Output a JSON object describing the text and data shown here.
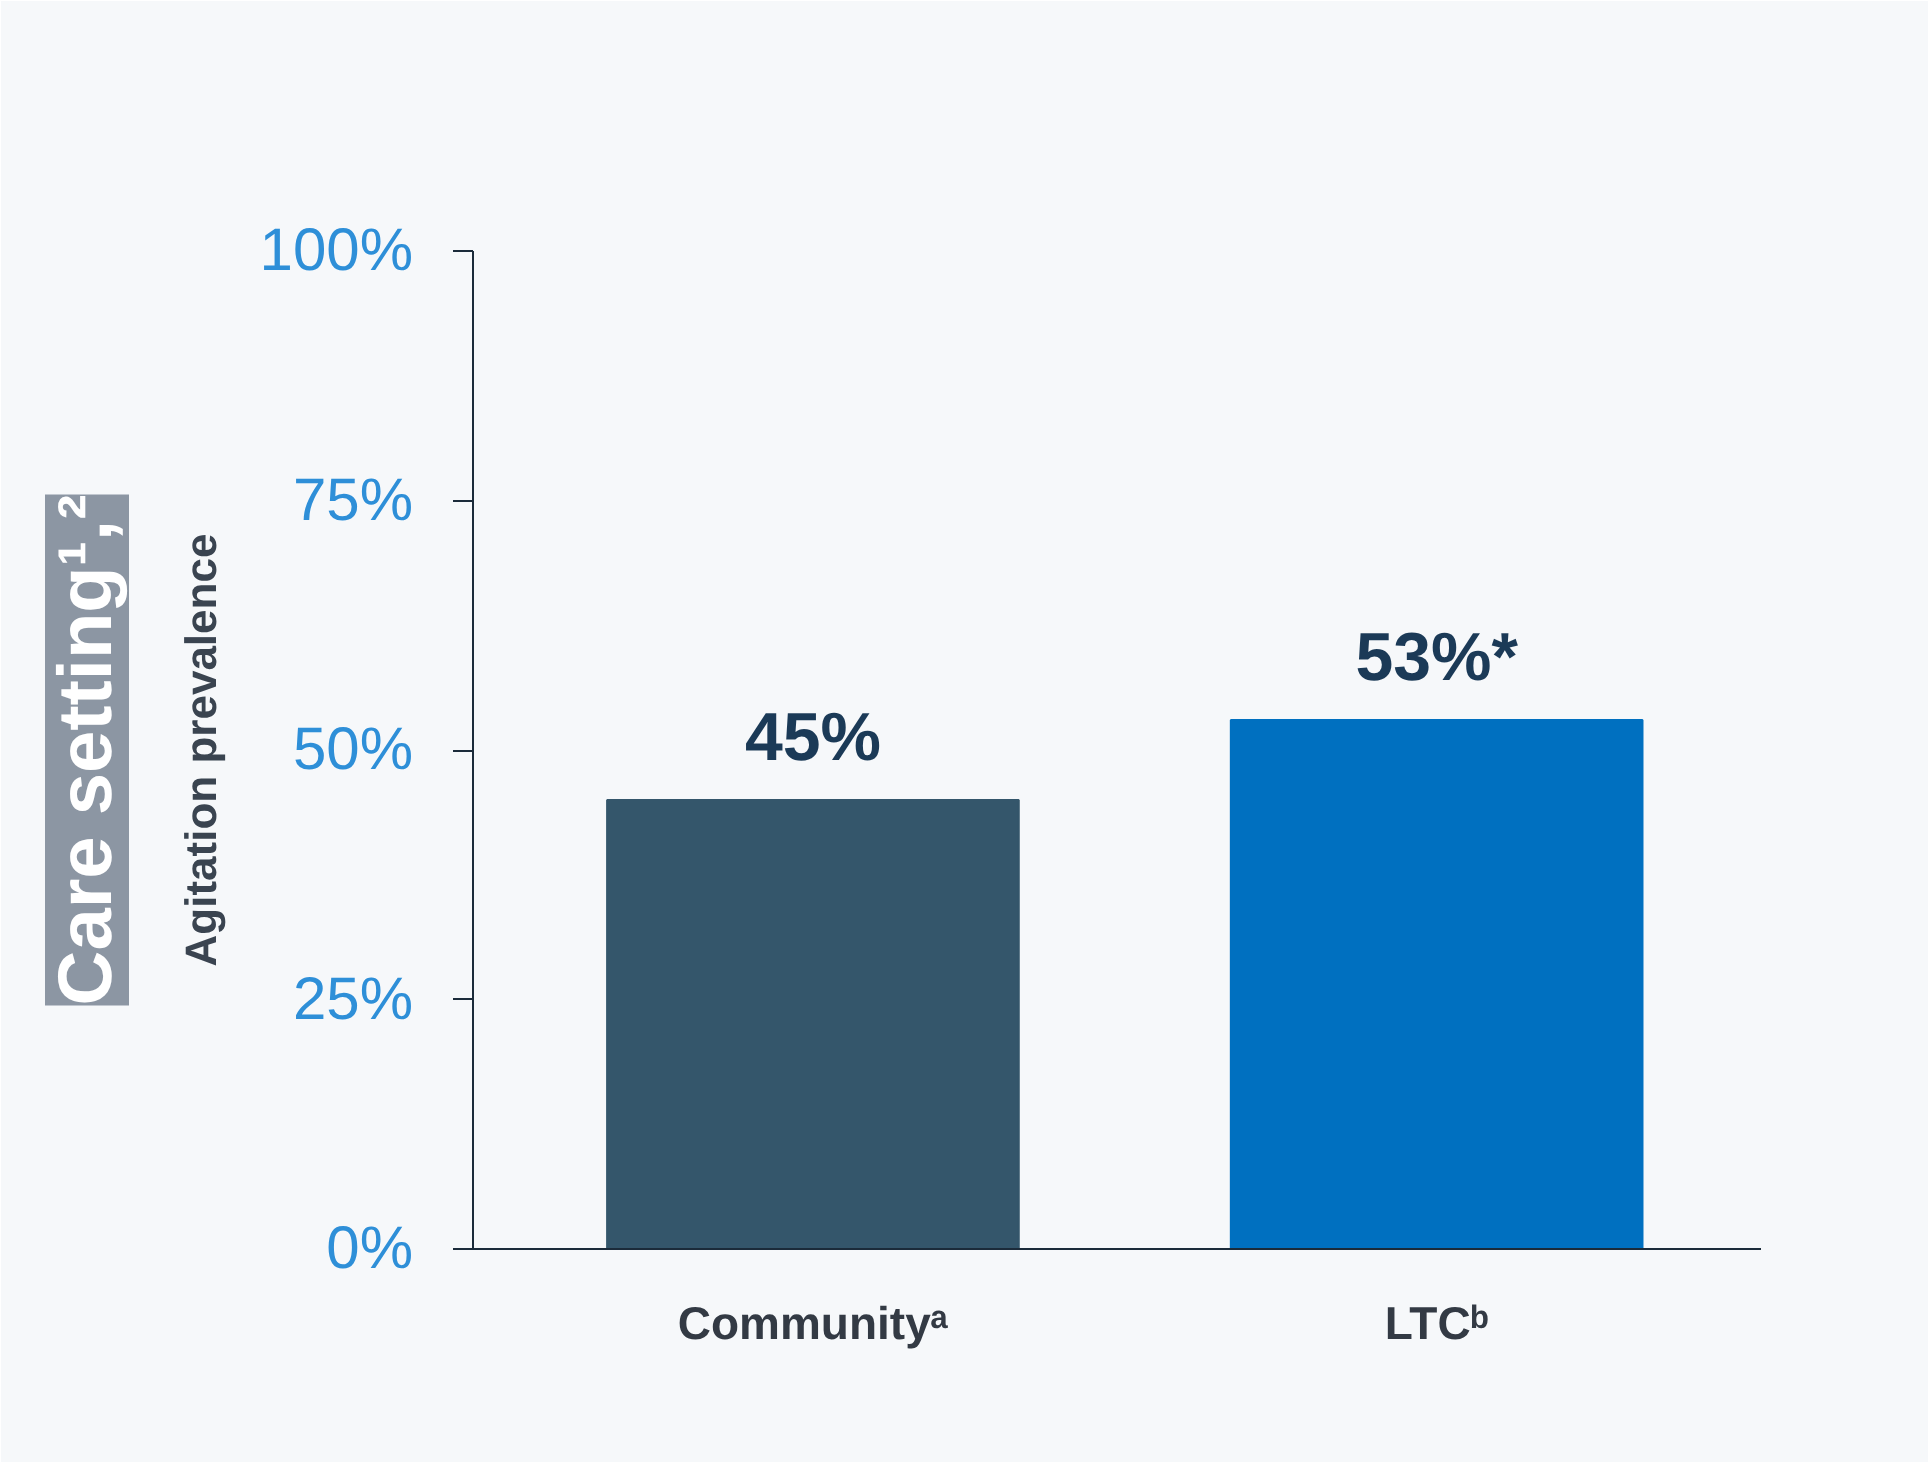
{
  "chart_data": {
    "type": "bar",
    "title": "Care setting¹,²",
    "ylabel": "Agitation prevalence",
    "categories": [
      "Communityᵃ",
      "LTCᵇ"
    ],
    "values": [
      45,
      53
    ],
    "colors": [
      "#34566b",
      "#0070c0"
    ],
    "value_labels": [
      "45%",
      "53%*"
    ],
    "ylim": [
      0,
      100
    ],
    "yticks": [
      {
        "value": 0,
        "label": "0%"
      },
      {
        "value": 25,
        "label": "25%"
      },
      {
        "value": 50,
        "label": "50%"
      },
      {
        "value": 75,
        "label": "75%"
      },
      {
        "value": 100,
        "label": "100%"
      }
    ],
    "grid": false
  }
}
